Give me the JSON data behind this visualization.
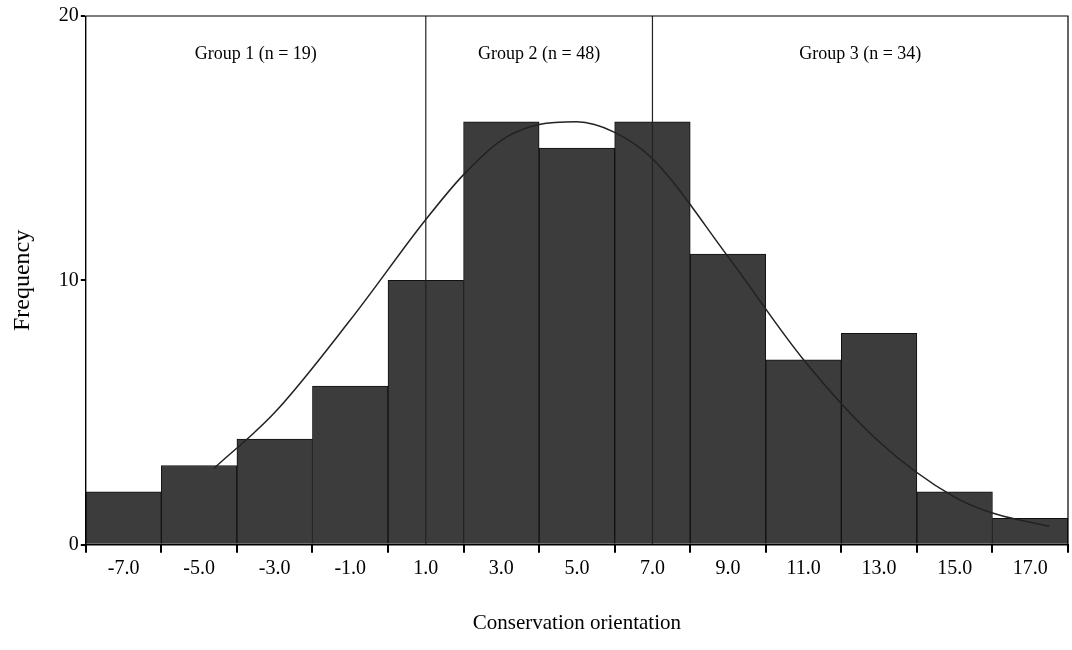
{
  "chart_data": {
    "type": "histogram",
    "xlabel": "Conservation orientation",
    "ylabel": "Frequency",
    "bins": [
      -8,
      -6,
      -4,
      -2,
      0,
      2,
      4,
      6,
      8,
      10,
      12,
      14,
      16,
      18
    ],
    "values": [
      2,
      3,
      4,
      6,
      10,
      16,
      15,
      16,
      11,
      7,
      8,
      2,
      1
    ],
    "color": "#3c3c3c",
    "series": [
      {
        "type": "line",
        "color": "#222222",
        "x": [
          -4.6,
          -3,
          -1,
          1,
          2,
          3,
          4,
          5,
          6,
          7,
          9,
          11,
          13,
          15,
          16,
          17.5
        ],
        "values": [
          2.9,
          5,
          8.5,
          12.3,
          14,
          15.3,
          15.9,
          16,
          15.6,
          14.6,
          10.9,
          7,
          3.9,
          1.8,
          1.2,
          0.7
        ]
      }
    ],
    "xlim": [
      -8,
      18
    ],
    "xticks": [
      {
        "value": -7,
        "label": "-7.0"
      },
      {
        "value": -5,
        "label": "-5.0"
      },
      {
        "value": -3,
        "label": "-3.0"
      },
      {
        "value": -1,
        "label": "-1.0"
      },
      {
        "value": 1,
        "label": "1.0"
      },
      {
        "value": 3,
        "label": "3.0"
      },
      {
        "value": 5,
        "label": "5.0"
      },
      {
        "value": 7,
        "label": "7.0"
      },
      {
        "value": 9,
        "label": "9.0"
      },
      {
        "value": 11,
        "label": "11.0"
      },
      {
        "value": 13,
        "label": "13.0"
      },
      {
        "value": 15,
        "label": "15.0"
      },
      {
        "value": 17,
        "label": "17.0"
      }
    ],
    "ylim": [
      0,
      20
    ],
    "yticks": [
      0,
      10,
      20
    ],
    "ref_lines": [
      {
        "axis": "x",
        "value": 1,
        "color": "#222222"
      },
      {
        "axis": "x",
        "value": 7,
        "color": "#222222"
      }
    ],
    "annotations": [
      "Group 1 (n = 19)",
      "Group 2 (n = 48)",
      "Group 3 (n = 34)"
    ],
    "grid": false,
    "legend": false,
    "marker": "none",
    "line_style": "solid"
  }
}
